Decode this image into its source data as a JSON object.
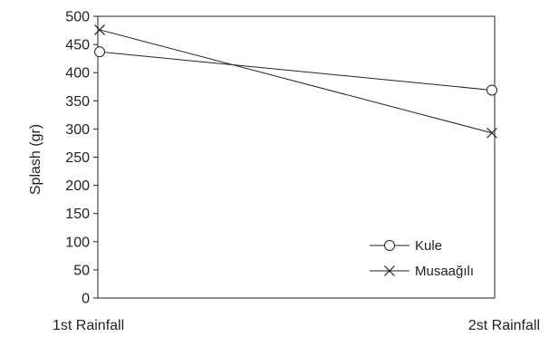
{
  "chart_data": {
    "type": "line",
    "title": "",
    "xlabel": "",
    "ylabel": "Splash (gr)",
    "categories": [
      "1st Rainfall",
      "2st Rainfall"
    ],
    "ylim": [
      0,
      500
    ],
    "yticks": [
      0,
      50,
      100,
      150,
      200,
      250,
      300,
      350,
      400,
      450,
      500
    ],
    "grid": false,
    "legend_position": "bottom-right",
    "series": [
      {
        "name": "Kule",
        "marker": "circle",
        "values": [
          437,
          369
        ]
      },
      {
        "name": "Musaağılı",
        "marker": "x",
        "values": [
          476,
          293
        ]
      }
    ],
    "colors": {
      "line": "#222222",
      "axis": "#222222"
    }
  }
}
